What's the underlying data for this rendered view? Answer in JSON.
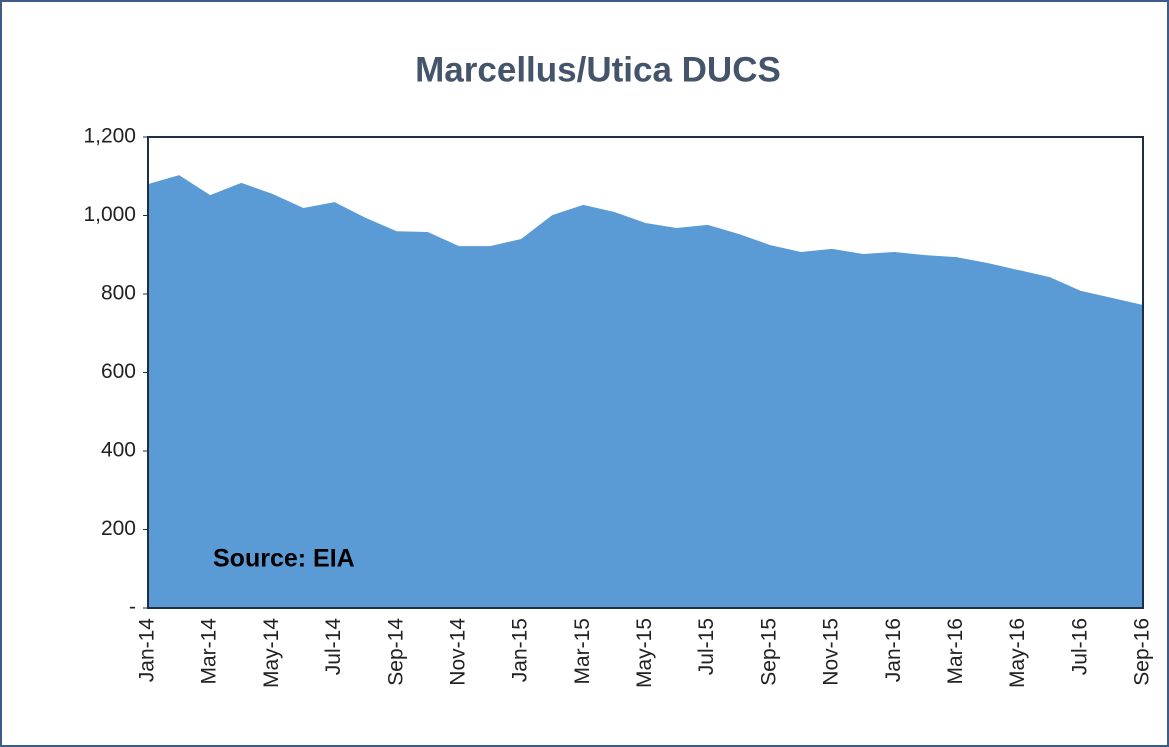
{
  "chart_data": {
    "type": "area",
    "title": "Marcellus/Utica  DUCS",
    "annotation": "Source: EIA",
    "color": "#5b9bd5",
    "categories": [
      "Jan-14",
      null,
      "Mar-14",
      null,
      "May-14",
      null,
      "Jul-14",
      null,
      "Sep-14",
      null,
      "Nov-14",
      null,
      "Jan-15",
      null,
      "Mar-15",
      null,
      "May-15",
      null,
      "Jul-15",
      null,
      "Sep-15",
      null,
      "Nov-15",
      null,
      "Jan-16",
      null,
      "Mar-16",
      null,
      "May-16",
      null,
      "Jul-16",
      null,
      "Sep-16"
    ],
    "values": [
      1080,
      1103,
      1052,
      1083,
      1055,
      1019,
      1034,
      994,
      960,
      958,
      922,
      922,
      940,
      1001,
      1027,
      1009,
      981,
      968,
      976,
      953,
      925,
      907,
      915,
      902,
      907,
      899,
      894,
      879,
      861,
      843,
      808,
      790,
      772
    ],
    "ylim": [
      0,
      1200
    ],
    "yticks": [
      {
        "value": 0,
        "label": "-"
      },
      200,
      400,
      600,
      800,
      {
        "value": 1000,
        "label": "1,000"
      },
      {
        "value": 1200,
        "label": "1,200"
      }
    ],
    "grid": false
  }
}
